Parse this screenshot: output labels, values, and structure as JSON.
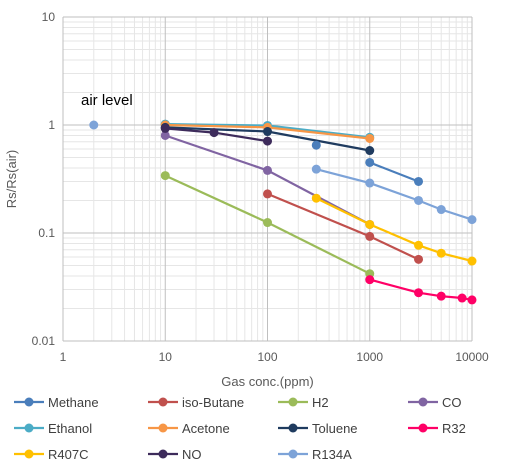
{
  "chart_data": {
    "type": "line",
    "xlabel": "Gas conc.(ppm)",
    "ylabel": "Rs/Rs(air)",
    "x_scale": "log",
    "y_scale": "log",
    "xlim": [
      1,
      10000
    ],
    "ylim": [
      0.01,
      10
    ],
    "x_ticks": [
      "1",
      "10",
      "100",
      "1000",
      "10000"
    ],
    "y_ticks": [
      "10",
      "1",
      "0.1",
      "0.01"
    ],
    "grid": true,
    "legend_position": "bottom",
    "annotations": [
      {
        "text": "air level",
        "x": 2,
        "y": 1
      }
    ],
    "air_point": {
      "x": 2,
      "y": 1,
      "color": "#7da3d8"
    },
    "series": [
      {
        "name": "Methane",
        "color": "#4a7ebb",
        "x": [
          1000,
          3000
        ],
        "y": [
          0.45,
          0.3
        ]
      },
      {
        "name": "iso-Butane",
        "color": "#c0504d",
        "x": [
          100,
          1000,
          3000
        ],
        "y": [
          0.23,
          0.093,
          0.057
        ]
      },
      {
        "name": "H2",
        "color": "#9bbb59",
        "x": [
          10,
          100,
          1000
        ],
        "y": [
          0.34,
          0.125,
          0.042
        ]
      },
      {
        "name": "CO",
        "color": "#8064a2",
        "x": [
          10,
          100,
          1000
        ],
        "y": [
          0.8,
          0.38,
          0.12
        ]
      },
      {
        "name": "Ethanol",
        "color": "#4bacc6",
        "x": [
          10,
          100,
          1000
        ],
        "y": [
          1.02,
          0.99,
          0.77
        ]
      },
      {
        "name": "Acetone",
        "color": "#f79646",
        "x": [
          10,
          100,
          1000
        ],
        "y": [
          1.0,
          0.95,
          0.75
        ]
      },
      {
        "name": "Toluene",
        "color": "#1f3b5f",
        "x": [
          10,
          100,
          1000
        ],
        "y": [
          0.95,
          0.87,
          0.58
        ]
      },
      {
        "name": "R32",
        "color": "#ff0066",
        "x": [
          1000,
          3000,
          5000,
          8000,
          10000
        ],
        "y": [
          0.037,
          0.028,
          0.026,
          0.025,
          0.024
        ]
      },
      {
        "name": "R407C",
        "color": "#ffc000",
        "x": [
          300,
          1000,
          3000,
          5000,
          10000
        ],
        "y": [
          0.21,
          0.12,
          0.077,
          0.065,
          0.055
        ]
      },
      {
        "name": "NO",
        "color": "#3d2b5b",
        "x": [
          10,
          30,
          100
        ],
        "y": [
          0.93,
          0.85,
          0.71
        ]
      },
      {
        "name": "R134A",
        "color": "#7da3d8",
        "x": [
          300,
          1000,
          3000,
          5000,
          10000
        ],
        "y": [
          0.39,
          0.29,
          0.2,
          0.165,
          0.133
        ]
      },
      {
        "name": "Methane",
        "color": "#4a7ebb",
        "x": [
          300
        ],
        "y": [
          0.65
        ],
        "legend": false
      }
    ]
  }
}
